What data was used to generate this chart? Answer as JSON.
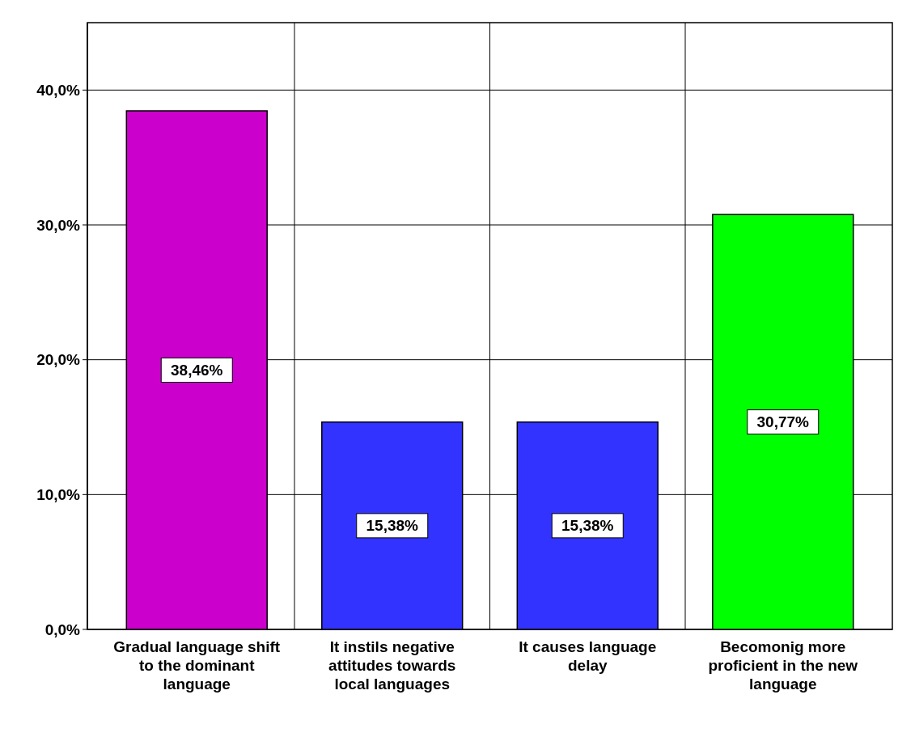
{
  "chart_data": {
    "type": "bar",
    "categories": [
      "Gradual language shift to the dominant language",
      "It instils negative attitudes towards local languages",
      "It causes language delay",
      "Becomonig more proficient in the new language"
    ],
    "values": [
      38.46,
      15.38,
      15.38,
      30.77
    ],
    "colors": [
      "#cc00cc",
      "#3333ff",
      "#3333ff",
      "#00ff00"
    ],
    "value_labels": [
      "38,46%",
      "15,38%",
      "15,38%",
      "30,77%"
    ],
    "ylim": [
      0,
      45
    ],
    "yticks": [
      {
        "value": 0,
        "label": "0,0%"
      },
      {
        "value": 10,
        "label": "10,0%"
      },
      {
        "value": 20,
        "label": "20,0%"
      },
      {
        "value": 30,
        "label": "30,0%"
      },
      {
        "value": 40,
        "label": "40,0%"
      }
    ],
    "grid": true
  }
}
